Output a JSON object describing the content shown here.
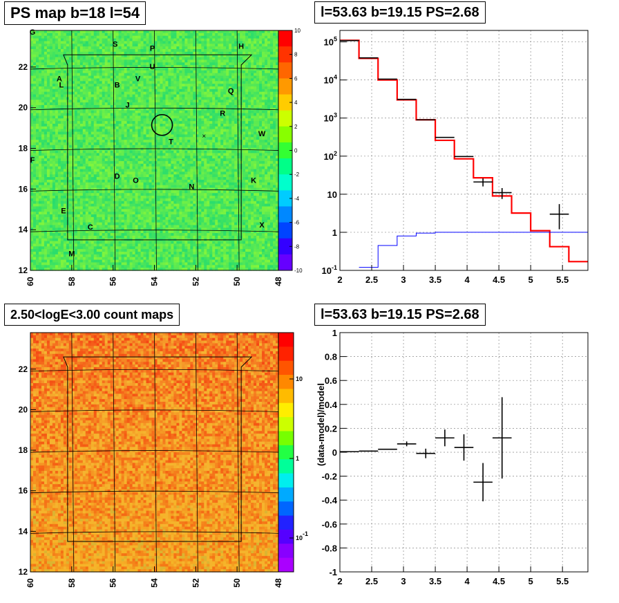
{
  "panels": {
    "ps_map_title": "PS map b=18 l=54",
    "spectrum_title": "l=53.63 b=19.15 PS=2.68",
    "count_map_title": "2.50<logE<3.00 count maps",
    "residual_title": "l=53.63 b=19.15 PS=2.68"
  },
  "chart_data": [
    {
      "id": "ps_map",
      "type": "heatmap",
      "title": "PS map b=18 l=54",
      "xlim": [
        60,
        48
      ],
      "ylim": [
        12,
        23.8
      ],
      "x_ticks": [
        60,
        58,
        56,
        54,
        52,
        50,
        48
      ],
      "y_ticks": [
        12,
        14,
        16,
        18,
        20,
        22
      ],
      "colorbar": {
        "min": -10,
        "max": 10,
        "ticks": [
          10,
          8,
          6,
          4,
          2,
          0,
          -2,
          -4,
          -6,
          -8,
          -10
        ]
      },
      "markers": [
        {
          "label": "G",
          "l": 59.9,
          "b": 23.6
        },
        {
          "label": "S",
          "l": 55.9,
          "b": 23.0
        },
        {
          "label": "P",
          "l": 54.1,
          "b": 22.8
        },
        {
          "label": "H",
          "l": 49.8,
          "b": 22.9
        },
        {
          "label": "U",
          "l": 54.1,
          "b": 21.9
        },
        {
          "label": "A",
          "l": 58.6,
          "b": 21.3
        },
        {
          "label": "L",
          "l": 58.5,
          "b": 21.0
        },
        {
          "label": "V",
          "l": 54.8,
          "b": 21.3
        },
        {
          "label": "B",
          "l": 55.8,
          "b": 21.0
        },
        {
          "label": "Q",
          "l": 50.3,
          "b": 20.7
        },
        {
          "label": "J",
          "l": 55.3,
          "b": 20.0
        },
        {
          "label": "R",
          "l": 50.7,
          "b": 19.6
        },
        {
          "label": "W",
          "l": 48.8,
          "b": 18.6
        },
        {
          "label": "T",
          "l": 53.2,
          "b": 18.2
        },
        {
          "label": "F",
          "l": 59.9,
          "b": 17.3
        },
        {
          "label": "D",
          "l": 55.8,
          "b": 16.5
        },
        {
          "label": "O",
          "l": 54.9,
          "b": 16.3
        },
        {
          "label": "K",
          "l": 49.2,
          "b": 16.3
        },
        {
          "label": "N",
          "l": 52.2,
          "b": 16.0
        },
        {
          "label": "E",
          "l": 58.4,
          "b": 14.8
        },
        {
          "label": "C",
          "l": 57.1,
          "b": 14.0
        },
        {
          "label": "X",
          "l": 48.8,
          "b": 14.1
        },
        {
          "label": "M",
          "l": 58.0,
          "b": 12.7
        }
      ],
      "ps_circle": {
        "l": 53.63,
        "b": 19.15
      }
    },
    {
      "id": "spectrum",
      "type": "line",
      "title": "l=53.63 b=19.15 PS=2.68",
      "xlim": [
        2,
        5.9
      ],
      "ylim": [
        0.1,
        200000
      ],
      "yscale": "log",
      "x_ticks": [
        2,
        2.5,
        3,
        3.5,
        4,
        4.5,
        5,
        5.5
      ],
      "y_ticks": [
        "10^-1",
        "1",
        "10",
        "10^2",
        "10^3",
        "10^4",
        "10^5"
      ],
      "y_tick_values": [
        0.1,
        1,
        10,
        100,
        1000,
        10000,
        100000
      ],
      "grid": true,
      "series": [
        {
          "role": "model",
          "color": "#ff0000",
          "edges": [
            2,
            2.3,
            2.6,
            2.9,
            3.2,
            3.5,
            3.8,
            4.1,
            4.4,
            4.7,
            5.0,
            5.3,
            5.6,
            5.9
          ],
          "values": [
            110000,
            37000,
            10000,
            3000,
            900,
            260,
            85,
            27,
            9,
            3.2,
            1.1,
            0.42,
            0.17
          ]
        },
        {
          "role": "data",
          "color": "#000000",
          "x": [
            2.15,
            2.45,
            2.75,
            3.05,
            3.35,
            3.65,
            3.95,
            4.25,
            4.55,
            5.45
          ],
          "y": [
            108000,
            38000,
            10500,
            3100,
            900,
            310,
            98,
            21,
            11,
            3.0
          ],
          "xerr": 0.15,
          "yerr_lo": [
            0,
            0,
            0,
            0,
            0,
            0,
            0,
            5,
            3.5,
            1.8
          ],
          "yerr_hi": [
            0,
            0,
            0,
            0,
            0,
            0,
            0,
            5,
            3.5,
            2.5
          ]
        },
        {
          "role": "ps_component",
          "color": "#0000ff",
          "edges": [
            2.3,
            2.6,
            2.9,
            3.2,
            3.5,
            5.9
          ],
          "values": [
            0.12,
            0.45,
            0.8,
            0.95,
            1.0
          ]
        }
      ]
    },
    {
      "id": "count_map",
      "type": "heatmap",
      "title": "2.50<logE<3.00 count maps",
      "xlim": [
        60,
        48
      ],
      "ylim": [
        12,
        23.8
      ],
      "x_ticks": [
        60,
        58,
        56,
        54,
        52,
        50,
        48
      ],
      "y_ticks": [
        12,
        14,
        16,
        18,
        20,
        22
      ],
      "colorbar": {
        "scale": "log",
        "ticks": [
          "10",
          "1",
          "10^-1"
        ]
      }
    },
    {
      "id": "residual",
      "type": "scatter",
      "title": "l=53.63 b=19.15 PS=2.68",
      "ylabel": "(data-model)/model",
      "xlim": [
        2,
        5.9
      ],
      "ylim": [
        -1,
        1
      ],
      "x_ticks": [
        2,
        2.5,
        3,
        3.5,
        4,
        4.5,
        5,
        5.5
      ],
      "y_ticks": [
        -1,
        -0.8,
        -0.6,
        -0.4,
        -0.2,
        0,
        0.2,
        0.4,
        0.6,
        0.8,
        1
      ],
      "grid": true,
      "points": [
        {
          "x": 2.15,
          "y": 0.005,
          "xerr": 0.15,
          "yerr": 0
        },
        {
          "x": 2.45,
          "y": 0.01,
          "xerr": 0.15,
          "yerr": 0
        },
        {
          "x": 2.75,
          "y": 0.025,
          "xerr": 0.15,
          "yerr": 0
        },
        {
          "x": 3.05,
          "y": 0.07,
          "xerr": 0.15,
          "yerr": 0.02
        },
        {
          "x": 3.35,
          "y": -0.01,
          "xerr": 0.15,
          "yerr": 0.04
        },
        {
          "x": 3.65,
          "y": 0.12,
          "xerr": 0.15,
          "yerr": 0.07
        },
        {
          "x": 3.95,
          "y": 0.04,
          "xerr": 0.15,
          "yerr": 0.11
        },
        {
          "x": 4.25,
          "y": -0.25,
          "xerr": 0.15,
          "yerr": 0.16
        },
        {
          "x": 4.55,
          "y": 0.12,
          "xerr": 0.15,
          "yerr": 0.34
        }
      ]
    }
  ],
  "labels": {
    "ytick_pow": [
      "10^5",
      "10^4",
      "10^3",
      "10^2"
    ]
  }
}
